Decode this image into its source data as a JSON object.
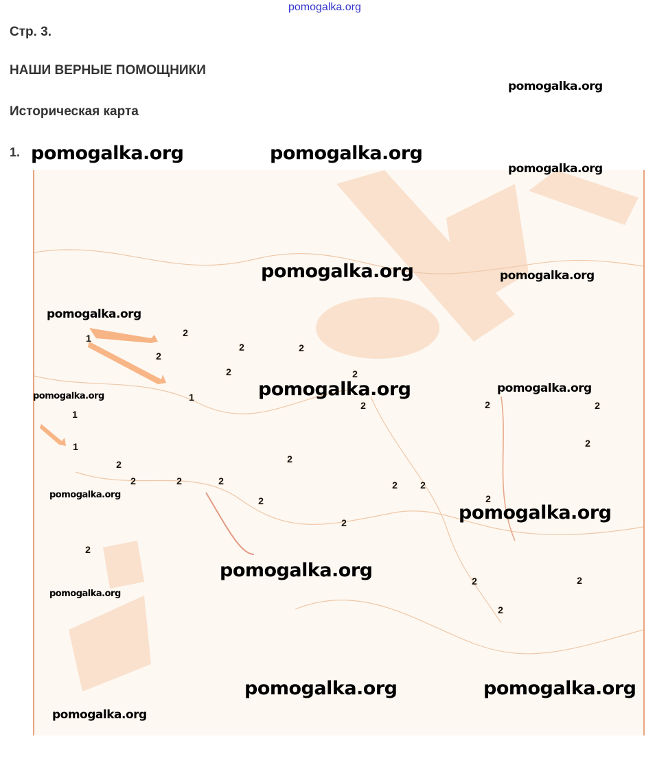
{
  "site_link": "pomogalka.org",
  "page_number": "Стр. 3.",
  "title": "НАШИ ВЕРНЫЕ ПОМОЩНИКИ",
  "subtitle": "Историческая карта",
  "task_number": "1.",
  "watermark_text": "pomogalka.org",
  "map": {
    "colors": {
      "background": "#fdf8f2",
      "accent": "#f4b88a",
      "border": "#e9a37f"
    },
    "markers": [
      "1",
      "2",
      "2",
      "2",
      "2",
      "2",
      "2",
      "1",
      "2",
      "1",
      "1",
      "2",
      "2",
      "2",
      "2",
      "2",
      "2",
      "2",
      "2",
      "2",
      "2",
      "2",
      "2",
      "2",
      "2",
      "2",
      "2",
      "2"
    ]
  }
}
